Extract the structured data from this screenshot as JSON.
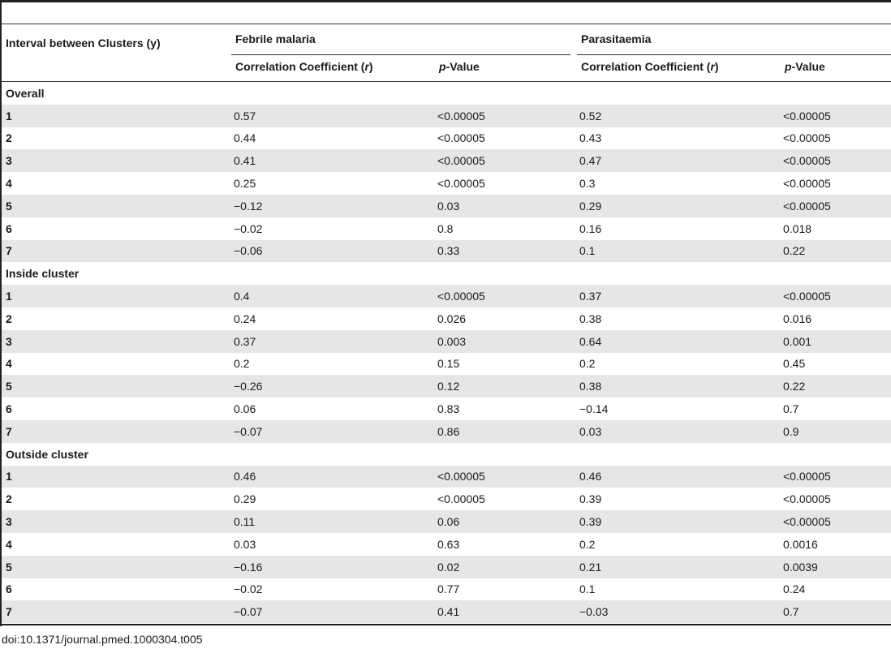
{
  "header": {
    "row_label": "Interval between Clusters (y)",
    "group1": "Febrile malaria",
    "group2": "Parasitaemia",
    "corr_label": "Correlation Coefficient (",
    "corr_var": "r",
    "corr_close": ")",
    "p_var": "p",
    "p_rest": "-Value"
  },
  "sections": [
    {
      "title": "Overall",
      "rows": [
        [
          "1",
          "0.57",
          "<0.00005",
          "0.52",
          "<0.00005"
        ],
        [
          "2",
          "0.44",
          "<0.00005",
          "0.43",
          "<0.00005"
        ],
        [
          "3",
          "0.41",
          "<0.00005",
          "0.47",
          "<0.00005"
        ],
        [
          "4",
          "0.25",
          "<0.00005",
          "0.3",
          "<0.00005"
        ],
        [
          "5",
          "−0.12",
          "0.03",
          "0.29",
          "<0.00005"
        ],
        [
          "6",
          "−0.02",
          "0.8",
          "0.16",
          "0.018"
        ],
        [
          "7",
          "−0.06",
          "0.33",
          "0.1",
          "0.22"
        ]
      ]
    },
    {
      "title": "Inside cluster",
      "rows": [
        [
          "1",
          "0.4",
          "<0.00005",
          "0.37",
          "<0.00005"
        ],
        [
          "2",
          "0.24",
          "0.026",
          "0.38",
          "0.016"
        ],
        [
          "3",
          "0.37",
          "0.003",
          "0.64",
          "0.001"
        ],
        [
          "4",
          "0.2",
          "0.15",
          "0.2",
          "0.45"
        ],
        [
          "5",
          "−0.26",
          "0.12",
          "0.38",
          "0.22"
        ],
        [
          "6",
          "0.06",
          "0.83",
          "−0.14",
          "0.7"
        ],
        [
          "7",
          "−0.07",
          "0.86",
          "0.03",
          "0.9"
        ]
      ]
    },
    {
      "title": "Outside cluster",
      "rows": [
        [
          "1",
          "0.46",
          "<0.00005",
          "0.46",
          "<0.00005"
        ],
        [
          "2",
          "0.29",
          "<0.00005",
          "0.39",
          "<0.00005"
        ],
        [
          "3",
          "0.11",
          "0.06",
          "0.39",
          "<0.00005"
        ],
        [
          "4",
          "0.03",
          "0.63",
          "0.2",
          "0.0016"
        ],
        [
          "5",
          "−0.16",
          "0.02",
          "0.21",
          "0.0039"
        ],
        [
          "6",
          "−0.02",
          "0.77",
          "0.1",
          "0.24"
        ],
        [
          "7",
          "−0.07",
          "0.41",
          "−0.03",
          "0.7"
        ]
      ]
    }
  ],
  "footer": "doi:10.1371/journal.pmed.1000304.t005",
  "colors": {
    "shade": "#e6e6e6",
    "rule": "#222222"
  }
}
